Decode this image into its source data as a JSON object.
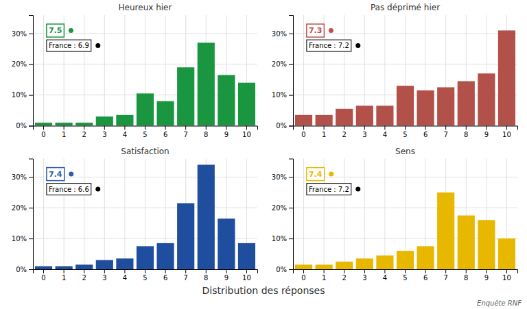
{
  "chart_data": [
    {
      "type": "bar",
      "title": "Heureux hier",
      "categories": [
        0,
        1,
        2,
        3,
        4,
        5,
        6,
        7,
        8,
        9,
        10
      ],
      "values": [
        1.0,
        1.0,
        1.0,
        3.0,
        3.5,
        10.5,
        8.0,
        19.0,
        27.0,
        16.5,
        14.0
      ],
      "color": "#1a9641",
      "ylim": [
        0,
        36
      ],
      "yticks": [
        {
          "value": 0,
          "label": "0%"
        },
        {
          "value": 10,
          "label": "10%"
        },
        {
          "value": 20,
          "label": "20%"
        },
        {
          "value": 30,
          "label": "30%"
        }
      ],
      "grid": true,
      "annotations": [
        {
          "text": "7.5",
          "color": "#1a9641"
        },
        {
          "text": "France : 6.9",
          "color": "#000000"
        }
      ]
    },
    {
      "type": "bar",
      "title": "Pas déprimé hier",
      "categories": [
        0,
        1,
        2,
        3,
        4,
        5,
        6,
        7,
        8,
        9,
        10
      ],
      "values": [
        3.5,
        3.5,
        5.5,
        6.5,
        6.5,
        13.0,
        11.5,
        12.5,
        14.5,
        17.0,
        31.0
      ],
      "color": "#b2504a",
      "ylim": [
        0,
        36
      ],
      "yticks": [
        {
          "value": 0,
          "label": "0%"
        },
        {
          "value": 10,
          "label": "10%"
        },
        {
          "value": 20,
          "label": "20%"
        },
        {
          "value": 30,
          "label": "30%"
        }
      ],
      "grid": true,
      "annotations": [
        {
          "text": "7.3",
          "color": "#c0504d"
        },
        {
          "text": "France : 7.2",
          "color": "#000000"
        }
      ]
    },
    {
      "type": "bar",
      "title": "Satisfaction",
      "categories": [
        0,
        1,
        2,
        3,
        4,
        5,
        6,
        7,
        8,
        9,
        10
      ],
      "values": [
        1.0,
        1.0,
        1.5,
        3.0,
        3.5,
        7.5,
        8.5,
        21.5,
        34.0,
        16.5,
        8.5
      ],
      "color": "#1f4e9e",
      "ylim": [
        0,
        36
      ],
      "yticks": [
        {
          "value": 0,
          "label": "0%"
        },
        {
          "value": 10,
          "label": "10%"
        },
        {
          "value": 20,
          "label": "20%"
        },
        {
          "value": 30,
          "label": "30%"
        }
      ],
      "grid": true,
      "annotations": [
        {
          "text": "7.4",
          "color": "#2b5ea7"
        },
        {
          "text": "France : 6.6",
          "color": "#000000"
        }
      ]
    },
    {
      "type": "bar",
      "title": "Sens",
      "categories": [
        0,
        1,
        2,
        3,
        4,
        5,
        6,
        7,
        8,
        9,
        10
      ],
      "values": [
        1.5,
        1.5,
        2.5,
        3.5,
        4.5,
        6.0,
        7.5,
        25.0,
        17.5,
        16.0,
        10.0
      ],
      "color": "#e8b800",
      "ylim": [
        0,
        36
      ],
      "yticks": [
        {
          "value": 0,
          "label": "0%"
        },
        {
          "value": 10,
          "label": "10%"
        },
        {
          "value": 20,
          "label": "20%"
        },
        {
          "value": 30,
          "label": "30%"
        }
      ],
      "grid": true,
      "annotations": [
        {
          "text": "7.4",
          "color": "#e8b800"
        },
        {
          "text": "France : 7.2",
          "color": "#000000"
        }
      ]
    }
  ],
  "xlabel": "Distribution des réponses",
  "source": "Enquête RNF"
}
